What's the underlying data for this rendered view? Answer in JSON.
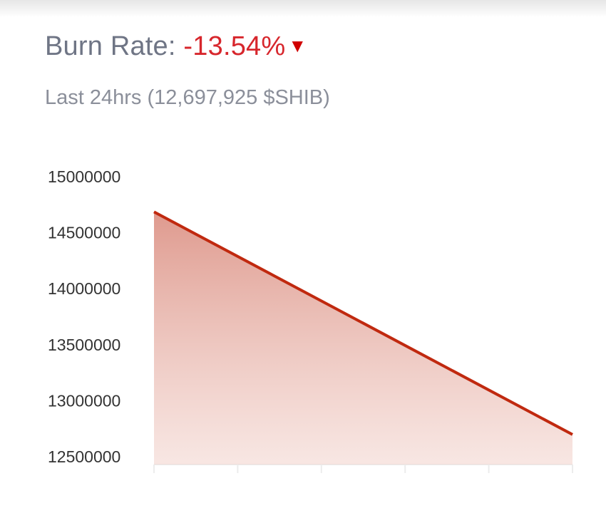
{
  "header": {
    "title_label": "Burn Rate:",
    "rate": "-13.54%",
    "trend_icon": "triangle-down-icon",
    "trend_glyph": "▼",
    "subtitle": "Last 24hrs (12,697,925 $SHIB)"
  },
  "colors": {
    "line": "#c0290f",
    "fill": "#d9887a",
    "rate": "#d7262c"
  },
  "chart_data": {
    "type": "area",
    "x": [
      0,
      1
    ],
    "values": [
      14686000,
      12697925
    ],
    "xlabel": "",
    "ylabel": "",
    "ylim": [
      12500000,
      15000000
    ],
    "yticks": [
      "15000000",
      "14500000",
      "14000000",
      "13500000",
      "13000000",
      "12500000"
    ],
    "xtick_count": 6,
    "grid": false
  }
}
